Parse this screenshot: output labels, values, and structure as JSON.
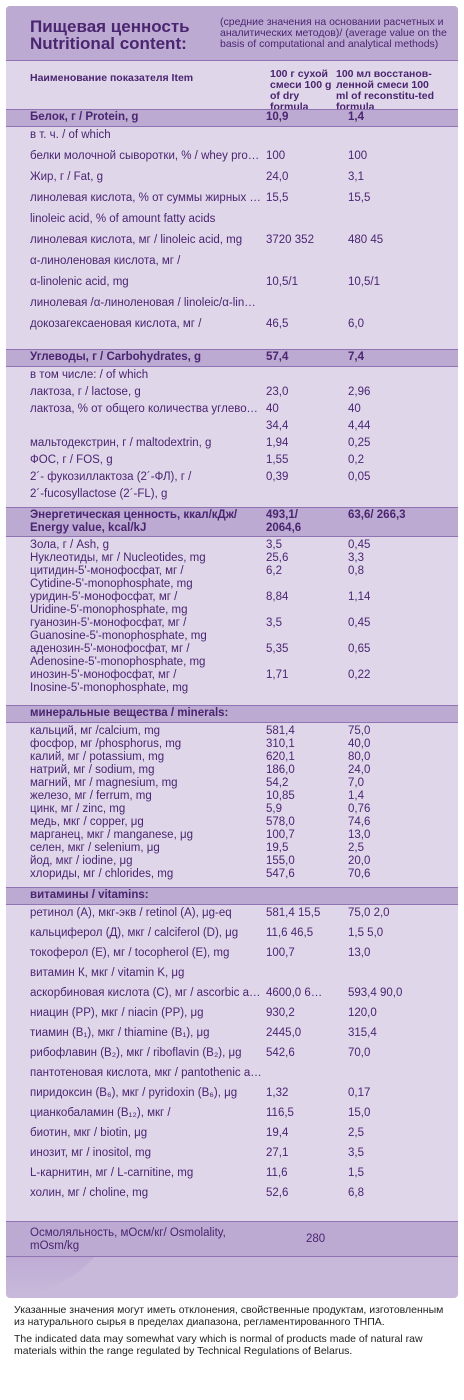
{
  "header": {
    "title_ru": "Пищевая ценность",
    "title_en": "Nutritional content:",
    "note": "(средние значения на основании расчетных и аналитических методов)/ (average value on the basis of computational and analytical methods)"
  },
  "columns": {
    "item": "Наименование показателя Item",
    "dry": "100 г сухой смеси 100 g of dry formula",
    "recon": "100 мл восстанов-ленной смеси 100 ml of reconstitu-ted formula"
  },
  "sections": {
    "protein": {
      "label": "Белок, г / Protein, g",
      "v1": "10,9",
      "v2": "1,4"
    },
    "carbs": {
      "label": "Углеводы, г / Carbohydrates, g",
      "v1": "57,4",
      "v2": "7,4"
    },
    "energy": {
      "label": "Энергетическая ценность, ккал/кДж/ Energy value, kcal/kJ",
      "v1": "493,1/ 2064,6",
      "v2": "63,6/ 266,3"
    },
    "minerals": {
      "label": "минеральные вещества / minerals:"
    },
    "vitamins": {
      "label": "витамины / vitamins:"
    }
  },
  "protein_rows": [
    {
      "label": "в т. ч. / of which",
      "v1": "",
      "v2": ""
    },
    {
      "label": "белки молочной сыворотки, % / whey protein, %",
      "v1": "100",
      "v2": "100"
    },
    {
      "label": "Жир, г / Fat, g",
      "v1": "24,0",
      "v2": "3,1"
    },
    {
      "label": "линолевая кислота, % от суммы жирных кислот /",
      "v1": "15,5",
      "v2": "15,5"
    },
    {
      "label": "linoleic acid, % of amount fatty acids",
      "v1": "",
      "v2": ""
    },
    {
      "label": "линолевая кислота, мг / linoleic acid, mg",
      "v1": "3720 352",
      "v2": "480 45"
    },
    {
      "label": "α-линоленовая кислота, мг /",
      "v1": "",
      "v2": ""
    },
    {
      "label": "α-linolenic acid, mg",
      "v1": "10,5/1",
      "v2": "10,5/1"
    },
    {
      "label": "линолевая /α-линоленовая / linoleic/α-linolenic",
      "v1": "",
      "v2": ""
    },
    {
      "label": "докозагексаеновая кислота, мг /",
      "v1": "46,5",
      "v2": "6,0"
    }
  ],
  "carb_rows": [
    {
      "label": "в том числе: / of which",
      "v1": "",
      "v2": ""
    },
    {
      "label": "лактоза, г / lactose, g",
      "v1": "23,0",
      "v2": "2,96"
    },
    {
      "label": "лактоза, % от общего количества углеводов / lactose, % of total quality of carbohydrates",
      "v1": "40",
      "v2": "40"
    },
    {
      "label": "",
      "v1": "34,4",
      "v2": "4,44"
    },
    {
      "label": "мальтодекстрин, г / maltodextrin, g",
      "v1": "1,94",
      "v2": "0,25"
    },
    {
      "label": "ФОС, г / FOS, g",
      "v1": "1,55",
      "v2": "0,2"
    },
    {
      "label": "2´- фукозиллактоза (2´-ФЛ), г /",
      "v1": "0,39",
      "v2": "0,05"
    },
    {
      "label": "2´-fucosyllactose (2´-FL), g",
      "v1": "",
      "v2": ""
    }
  ],
  "energy_rows": [
    {
      "label": "Зола, г / Ash, g",
      "v1": "3,5",
      "v2": "0,45"
    },
    {
      "label": "Нуклеотиды, мг / Nucleotides, mg",
      "v1": "25,6",
      "v2": "3,3"
    },
    {
      "label": "цитидин-5'-монофосфат, мг /",
      "v1": "6,2",
      "v2": "0,8"
    },
    {
      "label": "Cytidine-5'-monophosphate, mg",
      "v1": "",
      "v2": ""
    },
    {
      "label": "уридин-5'-монофосфат, мг /",
      "v1": "8,84",
      "v2": "1,14"
    },
    {
      "label": "Uridine-5'-monophosphate, mg",
      "v1": "",
      "v2": ""
    },
    {
      "label": "гуанозин-5'-монофосфат, мг /",
      "v1": "3,5",
      "v2": "0,45"
    },
    {
      "label": "Guanosine-5'-monophosphate, mg",
      "v1": "",
      "v2": ""
    },
    {
      "label": "аденозин-5'-монофосфат, мг /",
      "v1": "5,35",
      "v2": "0,65"
    },
    {
      "label": "Adenosine-5'-monophosphate, mg",
      "v1": "",
      "v2": ""
    },
    {
      "label": "инозин-5'-монофосфат, мг /",
      "v1": "1,71",
      "v2": "0,22"
    },
    {
      "label": "Inosine-5'-monophosphate, mg",
      "v1": "",
      "v2": ""
    }
  ],
  "mineral_rows": [
    {
      "label": "кальций, мг /calcium, mg",
      "v1": "581,4",
      "v2": "75,0"
    },
    {
      "label": "фосфор, мг /phosphorus, mg",
      "v1": "310,1",
      "v2": "40,0"
    },
    {
      "label": "калий, мг / potassium, mg",
      "v1": "620,1",
      "v2": "80,0"
    },
    {
      "label": "натрий, мг / sodium, mg",
      "v1": "186,0",
      "v2": "24,0"
    },
    {
      "label": "магний, мг / magnesium, mg",
      "v1": "54,2",
      "v2": "7,0"
    },
    {
      "label": "железо, мг / ferrum, mg",
      "v1": "10,85",
      "v2": "1,4"
    },
    {
      "label": "цинк, мг / zinc, mg",
      "v1": "5,9",
      "v2": "0,76"
    },
    {
      "label": "медь, мкг / copper, μg",
      "v1": "578,0",
      "v2": "74,6"
    },
    {
      "label": "марганец, мкг / manganese, μg",
      "v1": "100,7",
      "v2": "13,0"
    },
    {
      "label": "селен, мкг / selenium, μg",
      "v1": "19,5",
      "v2": "2,5"
    },
    {
      "label": "йод, мкг / iodine, μg",
      "v1": "155,0",
      "v2": "20,0"
    },
    {
      "label": "хлориды, мг / chlorides, mg",
      "v1": "547,6",
      "v2": "70,6"
    }
  ],
  "vitamin_rows": [
    {
      "label": "ретинол (А), мкг-экв / retinol (A), μg-eq",
      "v1": "581,4 15,5",
      "v2": "75,0 2,0"
    },
    {
      "label": "кальциферол (Д), мкг / calciferol (D), μg",
      "v1": "11,6 46,5",
      "v2": "1,5 5,0"
    },
    {
      "label": "токоферол (Е), мг / tocopherol (E), mg",
      "v1": "100,7",
      "v2": "13,0"
    },
    {
      "label": "витамин К, мкг / vitamin K, μg",
      "v1": "",
      "v2": ""
    },
    {
      "label": "аскорбиновая кислота (С), мг / ascorbic acid (C), mg",
      "v1": "4600,0 697,6",
      "v2": "593,4 90,0"
    },
    {
      "label": "ниацин (РР), мкг / niacin (PP), μg",
      "v1": "930,2",
      "v2": "120,0"
    },
    {
      "label": "тиамин (В₁), мкг / thiamine (B₁), μg",
      "v1": "2445,0",
      "v2": "315,4"
    },
    {
      "label": "рибофлавин (В₂), мкг / riboflavin (B₂), μg",
      "v1": "542,6",
      "v2": "70,0"
    },
    {
      "label": "пантотеновая кислота, мкг / pantothenic acid, μg",
      "v1": "",
      "v2": ""
    },
    {
      "label": "пиридоксин (В₆), мкг / pyridoxin (B₆), μg",
      "v1": "1,32",
      "v2": "0,17"
    },
    {
      "label": "цианкобаламин (В₁₂), мкг /",
      "v1": "116,5",
      "v2": "15,0"
    },
    {
      "label": "биотин, мкг / biotin, μg",
      "v1": "19,4",
      "v2": "2,5"
    },
    {
      "label": "инозит, мг / inositol, mg",
      "v1": "27,1",
      "v2": "3,5"
    },
    {
      "label": "L-карнитин, мг / L-carnitine, mg",
      "v1": "11,6",
      "v2": "1,5"
    },
    {
      "label": "холин, мг / choline, mg",
      "v1": "52,6",
      "v2": "6,8"
    }
  ],
  "osmolality": {
    "label": "Осмоляльность, мОсм/кг/ Osmolality, mOsm/kg",
    "value": "280"
  },
  "footer": {
    "ru": "Указанные значения могут иметь отклонения, свойственные продуктам, изготовленным из натурального сырья в пределах диапазона, регламентированного ТНПА.",
    "en": "The indicated data may somewhat vary which is normal of products made of natural raw materials within the range regulated by Technical Regulations of Belarus."
  }
}
